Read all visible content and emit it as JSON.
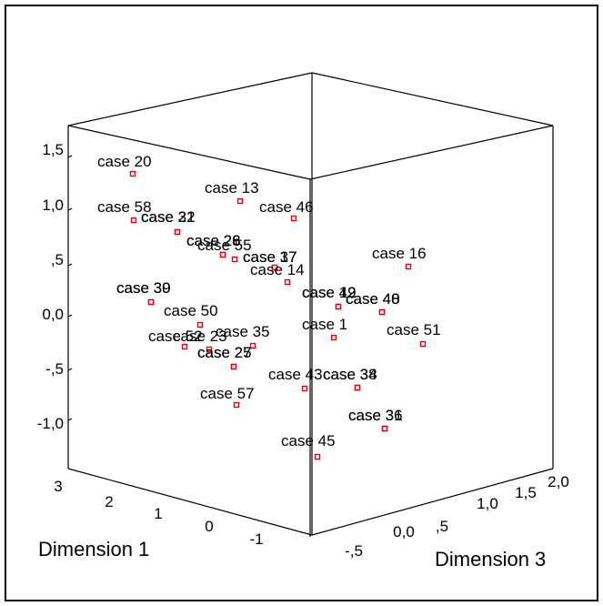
{
  "colors": {
    "background": "#ffffff",
    "frame": "#000000",
    "point": "#e8000b",
    "text": "#000000"
  },
  "chart_data": {
    "type": "scatter",
    "projection": "3d",
    "title": "",
    "axes": {
      "vertical": {
        "label": "",
        "ticks": [
          "1,5",
          "1,0",
          ",5",
          "0,0",
          "-,5",
          "-1,0"
        ],
        "range": [
          -1.5,
          1.6
        ]
      },
      "dimension1": {
        "label": "Dimension 1",
        "ticks": [
          "3",
          "2",
          "1",
          "0",
          "-1"
        ],
        "range": [
          -2,
          3
        ]
      },
      "dimension3": {
        "label": "Dimension 3",
        "ticks": [
          "-,5",
          "0,0",
          ",5",
          "1,0",
          "1,5",
          "2,0"
        ],
        "range": [
          -1,
          2
        ]
      }
    },
    "legend": "none",
    "grid": false,
    "points": [
      {
        "label": "case 20"
      },
      {
        "label": "case 58"
      },
      {
        "label": "case 13"
      },
      {
        "label": "case 46"
      },
      {
        "label": "case 32"
      },
      {
        "label": "case 21"
      },
      {
        "label": "case 26"
      },
      {
        "label": "case 28"
      },
      {
        "label": "case 55"
      },
      {
        "label": "case 37"
      },
      {
        "label": "case 17"
      },
      {
        "label": "case 14"
      },
      {
        "label": "case 16"
      },
      {
        "label": "case 39"
      },
      {
        "label": "case 30"
      },
      {
        "label": "case 50"
      },
      {
        "label": "case 19"
      },
      {
        "label": "case 42"
      },
      {
        "label": "case 40"
      },
      {
        "label": "case 48"
      },
      {
        "label": "case 1"
      },
      {
        "label": "case 51"
      },
      {
        "label": "case 52"
      },
      {
        "label": "case 23"
      },
      {
        "label": "case 35"
      },
      {
        "label": "case 27"
      },
      {
        "label": "case 25"
      },
      {
        "label": "case 43"
      },
      {
        "label": "case 38"
      },
      {
        "label": "case 34"
      },
      {
        "label": "case 57"
      },
      {
        "label": "case 36"
      },
      {
        "label": "case 31"
      },
      {
        "label": "case 45"
      }
    ]
  }
}
